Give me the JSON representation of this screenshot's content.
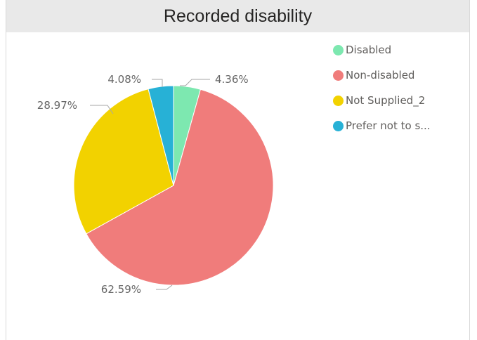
{
  "chart_data": {
    "type": "pie",
    "title": "Recorded disability",
    "legend_position": "right",
    "slices": [
      {
        "name": "Disabled",
        "legend_label": "Disabled",
        "value": 4.36,
        "label": "4.36%",
        "color": "#7de8b0"
      },
      {
        "name": "Non-disabled",
        "legend_label": "Non-disabled",
        "value": 62.59,
        "label": "62.59%",
        "color": "#f07c7b"
      },
      {
        "name": "Not Supplied_2",
        "legend_label": "Not Supplied_2",
        "value": 28.97,
        "label": "28.97%",
        "color": "#f2d200"
      },
      {
        "name": "Prefer not to say",
        "legend_label": "Prefer not to s...",
        "value": 4.08,
        "label": "4.08%",
        "color": "#27b1d6"
      }
    ]
  }
}
